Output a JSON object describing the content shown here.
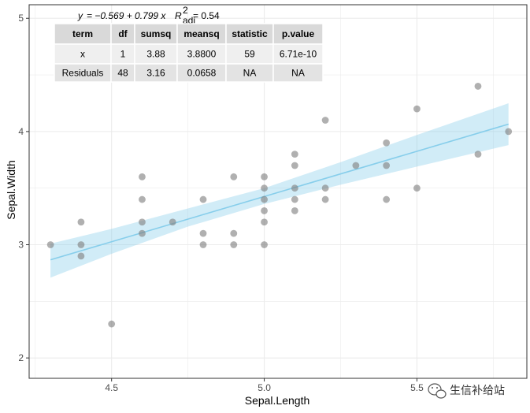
{
  "chart_data": {
    "type": "scatter",
    "xlabel": "Sepal.Length",
    "ylabel": "Sepal.Width",
    "xlim": [
      4.23,
      5.86
    ],
    "ylim": [
      1.82,
      5.12
    ],
    "x_ticks": [
      4.5,
      5.0,
      5.5
    ],
    "x_tick_labels": [
      "4.5",
      "5.0",
      "5.5"
    ],
    "y_ticks": [
      2,
      3,
      4,
      5
    ],
    "y_tick_labels": [
      "2",
      "3",
      "4",
      "5"
    ],
    "grid": true,
    "points": [
      {
        "x": 4.3,
        "y": 3.0
      },
      {
        "x": 4.4,
        "y": 3.2
      },
      {
        "x": 4.4,
        "y": 3.0
      },
      {
        "x": 4.4,
        "y": 2.9
      },
      {
        "x": 4.5,
        "y": 2.3
      },
      {
        "x": 4.6,
        "y": 3.6
      },
      {
        "x": 4.6,
        "y": 3.4
      },
      {
        "x": 4.6,
        "y": 3.2
      },
      {
        "x": 4.6,
        "y": 3.1
      },
      {
        "x": 4.7,
        "y": 3.2
      },
      {
        "x": 4.8,
        "y": 3.4
      },
      {
        "x": 4.8,
        "y": 3.1
      },
      {
        "x": 4.8,
        "y": 3.0
      },
      {
        "x": 4.9,
        "y": 3.6
      },
      {
        "x": 4.9,
        "y": 3.1
      },
      {
        "x": 4.9,
        "y": 3.0
      },
      {
        "x": 5.0,
        "y": 3.6
      },
      {
        "x": 5.0,
        "y": 3.5
      },
      {
        "x": 5.0,
        "y": 3.4
      },
      {
        "x": 5.0,
        "y": 3.3
      },
      {
        "x": 5.0,
        "y": 3.2
      },
      {
        "x": 5.0,
        "y": 3.0
      },
      {
        "x": 5.1,
        "y": 3.8
      },
      {
        "x": 5.1,
        "y": 3.7
      },
      {
        "x": 5.1,
        "y": 3.5
      },
      {
        "x": 5.1,
        "y": 3.4
      },
      {
        "x": 5.1,
        "y": 3.3
      },
      {
        "x": 5.2,
        "y": 4.1
      },
      {
        "x": 5.2,
        "y": 3.5
      },
      {
        "x": 5.2,
        "y": 3.4
      },
      {
        "x": 5.3,
        "y": 3.7
      },
      {
        "x": 5.4,
        "y": 3.9
      },
      {
        "x": 5.4,
        "y": 3.7
      },
      {
        "x": 5.4,
        "y": 3.4
      },
      {
        "x": 5.5,
        "y": 4.2
      },
      {
        "x": 5.5,
        "y": 3.5
      },
      {
        "x": 5.7,
        "y": 4.4
      },
      {
        "x": 5.7,
        "y": 3.8
      },
      {
        "x": 5.8,
        "y": 4.0
      }
    ],
    "fit": {
      "intercept": -0.569,
      "slope": 0.799,
      "x_range": [
        4.3,
        5.8
      ]
    },
    "confidence_band": [
      {
        "x": 4.3,
        "lower": 2.71,
        "upper": 3.01
      },
      {
        "x": 4.5,
        "lower": 2.92,
        "upper": 3.14
      },
      {
        "x": 4.75,
        "lower": 3.16,
        "upper": 3.32
      },
      {
        "x": 5.0,
        "lower": 3.36,
        "upper": 3.5
      },
      {
        "x": 5.25,
        "lower": 3.53,
        "upper": 3.73
      },
      {
        "x": 5.5,
        "lower": 3.69,
        "upper": 3.97
      },
      {
        "x": 5.8,
        "lower": 3.88,
        "upper": 4.25
      }
    ],
    "colors": {
      "point": "#808080",
      "line": "#87ceeb",
      "band": "#87ceeb",
      "grid": "#ebebeb",
      "panel_border": "#333333"
    },
    "equation": {
      "lhs": "y",
      "rhs": "= −0.569 + 0.799 x",
      "r2_symbol": "R",
      "r2_sup": "2",
      "r2_sub": "adj",
      "r2_value": "= 0.54"
    },
    "anova_table": {
      "headers": [
        "term",
        "df",
        "sumsq",
        "meansq",
        "statistic",
        "p.value"
      ],
      "rows": [
        [
          "x",
          "1",
          "3.88",
          "3.8800",
          "59",
          "6.71e-10"
        ],
        [
          "Residuals",
          "48",
          "3.16",
          "0.0658",
          "NA",
          "NA"
        ]
      ],
      "colors": {
        "header": "#d9d9d9",
        "row_odd": "#efefef",
        "row_even": "#e3e3e3"
      }
    }
  },
  "watermark": {
    "text": "生信补给站",
    "icon": "wechat-icon"
  }
}
